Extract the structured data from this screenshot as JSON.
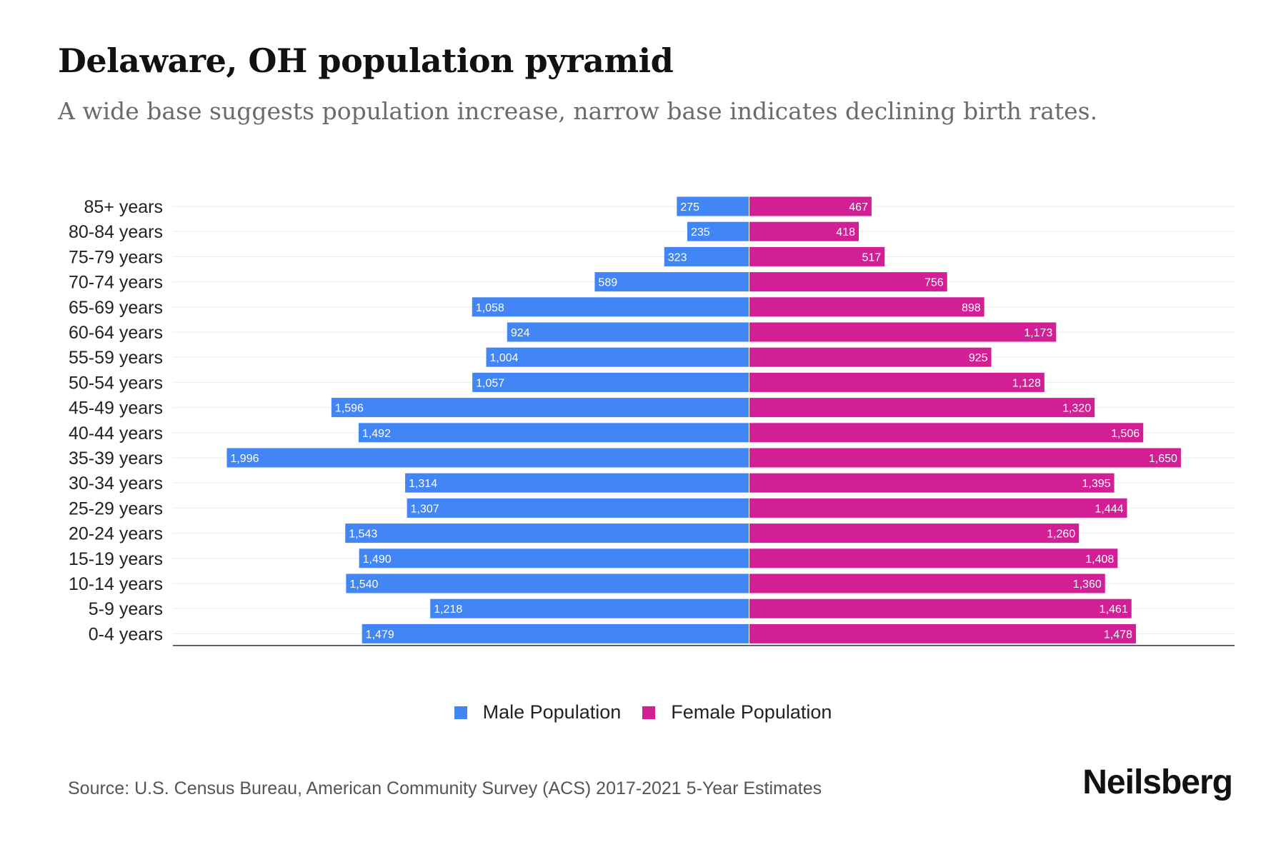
{
  "chart_data": {
    "type": "bar",
    "orientation": "horizontal-pyramid",
    "title": "Delaware, OH population pyramid",
    "subtitle": "A wide base suggests population increase, narrow base indicates declining birth rates.",
    "categories": [
      "85+ years",
      "80-84 years",
      "75-79 years",
      "70-74 years",
      "65-69 years",
      "60-64 years",
      "55-59 years",
      "50-54 years",
      "45-49 years",
      "40-44 years",
      "35-39 years",
      "30-34 years",
      "25-29 years",
      "20-24 years",
      "15-19 years",
      "10-14 years",
      "5-9 years",
      "0-4 years"
    ],
    "series": [
      {
        "name": "Male Population",
        "color": "#4285f4",
        "side": "left",
        "values": [
          275,
          235,
          323,
          589,
          1058,
          924,
          1004,
          1057,
          1596,
          1492,
          1996,
          1314,
          1307,
          1543,
          1490,
          1540,
          1218,
          1479
        ]
      },
      {
        "name": "Female Population",
        "color": "#d21f96",
        "side": "right",
        "values": [
          467,
          418,
          517,
          756,
          898,
          1173,
          925,
          1128,
          1320,
          1506,
          1650,
          1395,
          1444,
          1260,
          1408,
          1360,
          1461,
          1478
        ]
      }
    ],
    "xlim": [
      -2200,
      2200
    ],
    "grid": true,
    "legend_position": "bottom-center"
  },
  "legend": {
    "male_label": "Male Population",
    "female_label": "Female Population",
    "male_color": "#4285f4",
    "female_color": "#d21f96"
  },
  "footer": {
    "source": "Source: U.S. Census Bureau, American Community Survey (ACS) 2017-2021 5-Year Estimates",
    "brand": "Neilsberg"
  }
}
